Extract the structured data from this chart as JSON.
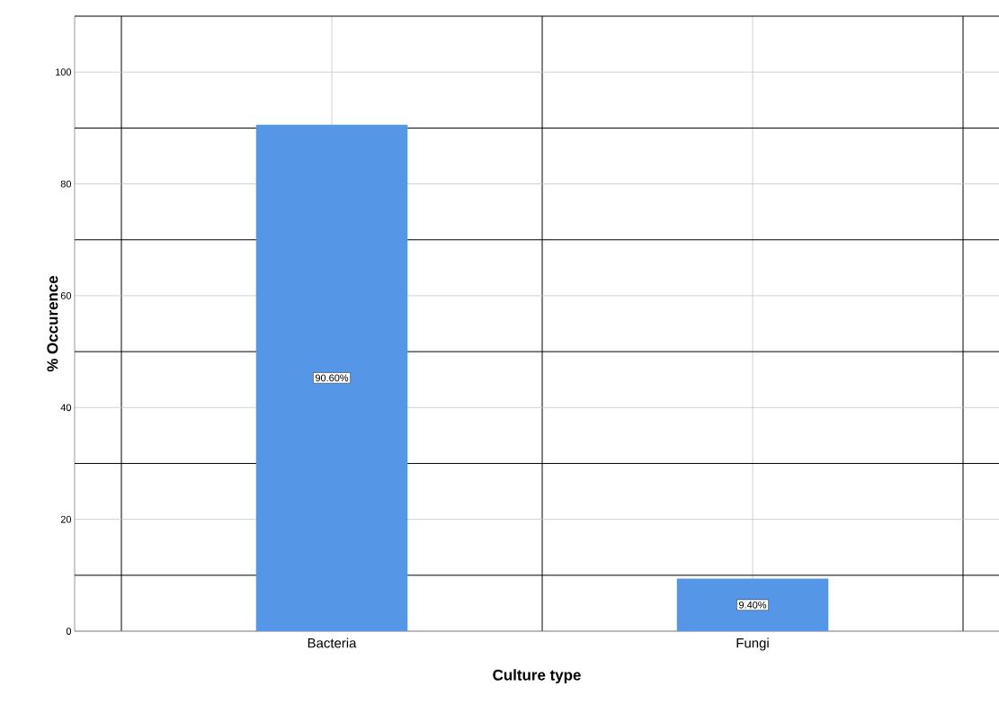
{
  "chart_data": {
    "type": "bar",
    "xlabel": "Culture type",
    "ylabel": "% Occurence",
    "categories": [
      "Bacteria",
      "Fungi"
    ],
    "values": [
      90.6,
      9.4
    ],
    "value_labels": [
      "90.60%",
      "9.40%"
    ],
    "color": "#5596e6",
    "ylim": [
      0,
      110
    ],
    "yticks": [
      0,
      {
        "value": 10,
        "label": null
      },
      20,
      {
        "value": 30,
        "label": null
      },
      40,
      {
        "value": 50,
        "label": null
      },
      60,
      {
        "value": 70,
        "label": null
      },
      80,
      {
        "value": 90,
        "label": null
      },
      100
    ],
    "grid": true
  }
}
